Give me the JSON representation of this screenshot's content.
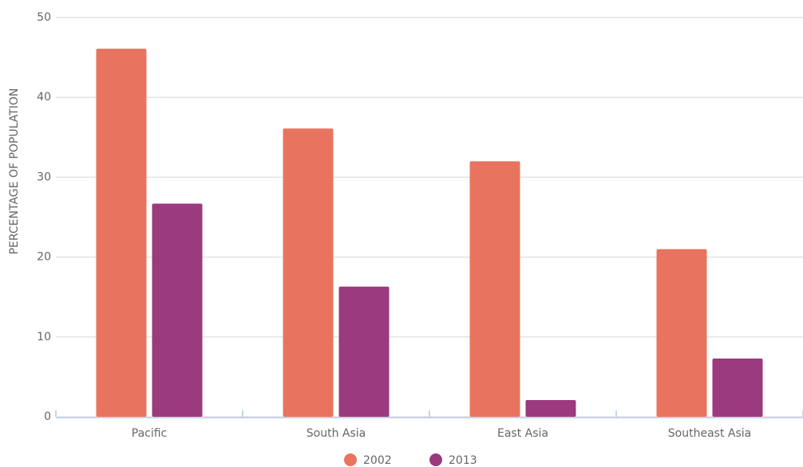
{
  "chart_data": {
    "type": "bar",
    "y_label": "PERCENTAGE OF POPULATION",
    "categories": [
      "Pacific",
      "South Asia",
      "East Asia",
      "Southeast Asia"
    ],
    "series": [
      {
        "name": "2002",
        "color": "#e8745f",
        "values": [
          46.1,
          36.1,
          32.0,
          21.0
        ]
      },
      {
        "name": "2013",
        "color": "#9b3a7c",
        "values": [
          26.7,
          16.3,
          2.1,
          7.3
        ]
      }
    ],
    "ylim": [
      0,
      50
    ],
    "yticks": [
      0,
      10,
      20,
      30,
      40,
      50
    ],
    "grid": true,
    "legend": "bottom"
  }
}
